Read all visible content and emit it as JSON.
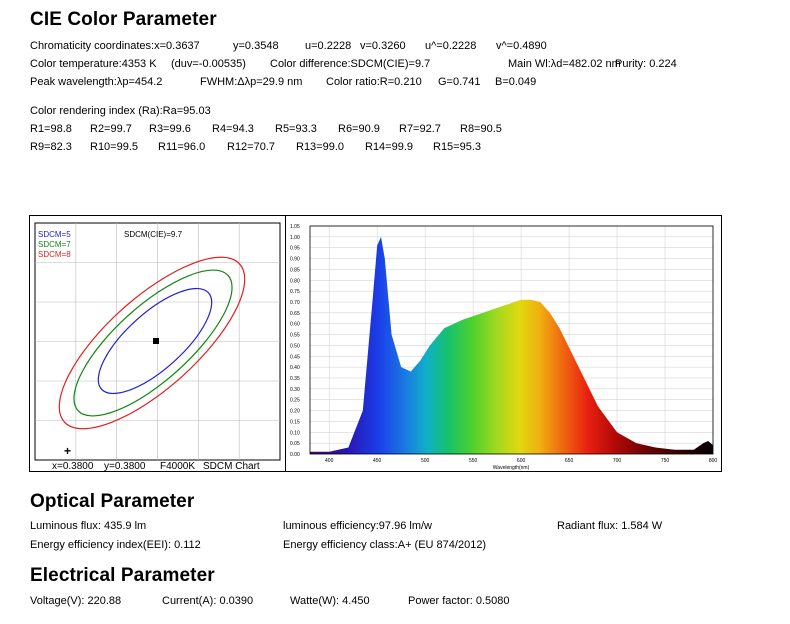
{
  "cie": {
    "title": "CIE Color Parameter",
    "chromaticity": [
      "Chromaticity coordinates:x=0.3637",
      "y=0.3548",
      "u=0.2228",
      "v=0.3260",
      "u^=0.2228",
      "v^=0.4890"
    ],
    "color_temp": [
      "Color temperature:4353 K",
      "(duv=-0.00535)",
      "Color difference:SDCM(CIE)=9.7",
      "Main Wl:λd=482.02 nm",
      "Purity: 0.224"
    ],
    "peak": [
      "Peak wavelength:λp=454.2",
      "FWHM:Δλp=29.9 nm",
      "Color ratio:R=0.210",
      "G=0.741",
      "B=0.049"
    ],
    "cri_title": "Color rendering index (Ra):Ra=95.03",
    "r_row1": [
      "R1=98.8",
      "R2=99.7",
      "R3=99.6",
      "R4=94.3",
      "R5=93.3",
      "R6=90.9",
      "R7=92.7",
      "R8=90.5"
    ],
    "r_row2": [
      "R9=82.3",
      "R10=99.5",
      "R11=96.0",
      "R12=70.7",
      "R13=99.0",
      "R14=99.9",
      "R15=95.3"
    ]
  },
  "sdcm_chart": {
    "legend": [
      {
        "label": "SDCM=5",
        "color": "#2222cc"
      },
      {
        "label": "SDCM=7",
        "color": "#118811"
      },
      {
        "label": "SDCM=8",
        "color": "#dd2222"
      }
    ],
    "sdcm_label": "SDCM(CIE)=9.7",
    "plus_mark": "+",
    "footer": [
      "x=0.3800",
      "y=0.3800",
      "F4000K",
      "SDCM Chart"
    ]
  },
  "chart_data": {
    "type": "area",
    "x": [
      380,
      400,
      420,
      435,
      445,
      450,
      454,
      458,
      465,
      475,
      485,
      495,
      505,
      520,
      540,
      560,
      580,
      600,
      610,
      620,
      630,
      640,
      660,
      680,
      700,
      720,
      740,
      760,
      780,
      790,
      795,
      800
    ],
    "y": [
      0.01,
      0.01,
      0.03,
      0.2,
      0.7,
      0.96,
      1.0,
      0.9,
      0.55,
      0.4,
      0.38,
      0.43,
      0.5,
      0.58,
      0.62,
      0.65,
      0.68,
      0.71,
      0.71,
      0.7,
      0.65,
      0.58,
      0.4,
      0.22,
      0.1,
      0.05,
      0.03,
      0.02,
      0.02,
      0.05,
      0.06,
      0.04
    ],
    "xlim": [
      380,
      800
    ],
    "ylim": [
      0,
      1.05
    ],
    "xticks": [
      400,
      450,
      500,
      550,
      600,
      650,
      700,
      750,
      800
    ],
    "yticks": [
      "0.00",
      "0.05",
      "0.10",
      "0.15",
      "0.20",
      "0.25",
      "0.30",
      "0.35",
      "0.40",
      "0.45",
      "0.50",
      "0.55",
      "0.60",
      "0.65",
      "0.70",
      "0.75",
      "0.80",
      "0.85",
      "0.90",
      "0.95",
      "1.00",
      "1.05"
    ],
    "xlabel": "Wavelength(nm)",
    "grid": true,
    "fill": "visible-spectrum gradient"
  },
  "optical": {
    "title": "Optical Parameter",
    "luminous_flux": "Luminous flux: 435.9 lm",
    "luminous_eff": "luminous efficiency:97.96 lm/w",
    "radiant_flux": "Radiant flux: 1.584 W",
    "eei": "Energy efficiency index(EEI): 0.112",
    "eec": "Energy efficiency class:A+ (EU 874/2012)"
  },
  "electrical": {
    "title": "Electrical Parameter",
    "voltage": "Voltage(V): 220.88",
    "current": "Current(A): 0.0390",
    "watts": "Watte(W): 4.450",
    "pf": "Power factor: 0.5080"
  }
}
